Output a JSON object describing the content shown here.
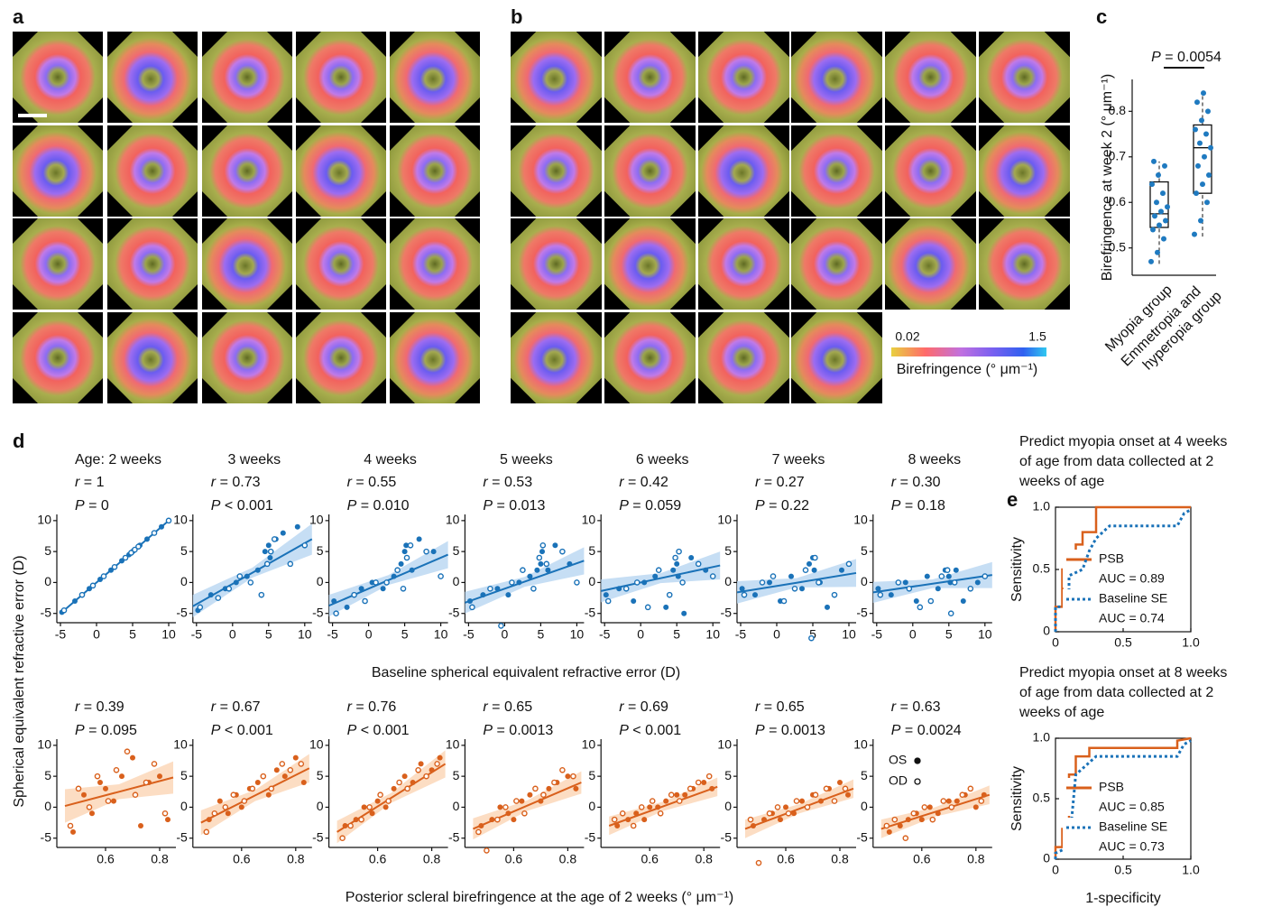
{
  "panel_labels": [
    "a",
    "b",
    "c",
    "d",
    "e"
  ],
  "colorbar": {
    "range": [
      0.02,
      1.5
    ],
    "ticks": [
      0.02,
      1.5
    ],
    "title": "Birefringence (° μm⁻¹)"
  },
  "chart_data": [
    {
      "type": "box",
      "annotation": "P = 0.0054",
      "ylabel": "Birefringence at week 2 (° μm⁻¹)",
      "categories": [
        "Myopia group",
        "Emmetropia and hyperopia group"
      ],
      "color": "#1f7ac0",
      "ylim": [
        0.44,
        0.87
      ],
      "yticks": [
        0.5,
        0.6,
        0.7,
        0.8
      ],
      "stats": [
        [
          0.465,
          0.545,
          0.575,
          0.645,
          0.69
        ],
        [
          0.525,
          0.62,
          0.72,
          0.77,
          0.845
        ]
      ],
      "points": [
        [
          0.47,
          0.49,
          0.52,
          0.54,
          0.55,
          0.56,
          0.57,
          0.58,
          0.59,
          0.6,
          0.62,
          0.64,
          0.66,
          0.68,
          0.69
        ],
        [
          0.53,
          0.56,
          0.6,
          0.62,
          0.64,
          0.66,
          0.68,
          0.7,
          0.72,
          0.73,
          0.75,
          0.76,
          0.78,
          0.8,
          0.82,
          0.84
        ]
      ]
    },
    {
      "type": "scatter-panels",
      "xlabel": "Baseline spherical equivalent refractive error (D)",
      "ylabel": "Spherical equivalent refractive error (D)",
      "color": "#1a72b8",
      "band_color": "#bcd8f2",
      "xlim": [
        -5.5,
        11
      ],
      "xticks": [
        -5,
        0,
        5,
        10
      ],
      "ylim": [
        -6.5,
        11
      ],
      "yticks": [
        -5,
        0,
        5,
        10
      ],
      "x_os": [
        -4.8,
        -3,
        -1,
        0.5,
        2,
        3.5,
        4.5,
        5,
        5.2,
        6,
        7,
        9
      ],
      "x_od": [
        -4.5,
        -2,
        -0.5,
        1,
        2.5,
        4,
        4.8,
        5.3,
        5.8,
        8,
        10
      ],
      "panels": [
        {
          "title": "Age: 2 weeks",
          "r": "r = 1",
          "p": "P = 0",
          "os": [
            -4.8,
            -3,
            -1,
            0.5,
            2,
            3.5,
            4.5,
            5,
            5.2,
            6,
            7,
            9
          ],
          "od": [
            -4.5,
            -2,
            -0.5,
            1,
            2.5,
            4,
            4.8,
            5.3,
            5.8,
            8,
            10
          ],
          "fit_x": [
            -5,
            2.5,
            10
          ],
          "fit_y": [
            -5,
            2.5,
            10
          ]
        },
        {
          "title": "3 weeks",
          "r": "r = 0.73",
          "p": "P < 0.001",
          "os": [
            -4.5,
            -2,
            -1,
            0,
            1,
            2,
            5,
            6,
            4,
            7,
            8,
            9
          ],
          "od": [
            -4,
            -2.5,
            -1,
            1,
            0,
            -2,
            3,
            5,
            7,
            3,
            6
          ],
          "fit_x": [
            -5.5,
            2.75,
            11
          ],
          "fit_y": [
            -3.83,
            1.58,
            7.0
          ],
          "band_low": [
            -5.6,
            0.8,
            4.5
          ],
          "band_high": [
            -2.0,
            2.4,
            9.5
          ]
        },
        {
          "title": "4 weeks",
          "r": "r = 0.55",
          "p": "P = 0.010",
          "os": [
            -3,
            -4,
            -1,
            0,
            -1,
            1,
            3,
            5,
            6,
            2,
            7,
            5
          ],
          "od": [
            -5,
            -2,
            -3,
            0,
            0,
            2,
            -1,
            4,
            6,
            5,
            1
          ],
          "fit_x": [
            -5.5,
            2.75,
            11
          ],
          "fit_y": [
            -3.75,
            0.38,
            4.5
          ],
          "band_low": [
            -5.5,
            -0.4,
            2.3
          ],
          "band_high": [
            -2,
            1.2,
            6.7
          ]
        },
        {
          "title": "5 weeks",
          "r": "r = 0.53",
          "p": "P = 0.013",
          "os": [
            -3,
            -2,
            -1,
            -2,
            0,
            1,
            2,
            3,
            5,
            2,
            6,
            3
          ],
          "od": [
            -4,
            -1,
            -7,
            0,
            2,
            -1,
            4,
            6,
            3,
            5,
            0
          ],
          "fit_x": [
            -5.5,
            2.75,
            11
          ],
          "fit_y": [
            -3.26,
            0.13,
            3.51
          ],
          "band_low": [
            -5,
            -0.7,
            1.3
          ],
          "band_high": [
            -1.5,
            0.9,
            5.7
          ]
        },
        {
          "title": "6 weeks",
          "r": "r = 0.42",
          "p": "P = 0.059",
          "os": [
            -2,
            -1,
            -3,
            0,
            1,
            -4,
            2,
            3,
            1,
            -5,
            4,
            2
          ],
          "od": [
            -3,
            -1,
            0,
            -4,
            2,
            -2,
            4,
            5,
            0,
            3,
            1
          ],
          "fit_x": [
            -5.5,
            2.75,
            11
          ],
          "fit_y": [
            -1.38,
            0.69,
            2.75
          ],
          "band_low": [
            -3.2,
            -0.1,
            0.5
          ],
          "band_high": [
            0.5,
            1.5,
            5
          ]
        },
        {
          "title": "7 weeks",
          "r": "r = 0.27",
          "p": "P = 0.22",
          "os": [
            -1,
            -2,
            0,
            -3,
            1,
            -1,
            3,
            4,
            2,
            0,
            -4,
            2
          ],
          "od": [
            -2,
            0,
            1,
            -3,
            -1,
            2,
            -9,
            4,
            0,
            -2,
            3
          ],
          "fit_x": [
            -5.5,
            2.75,
            11
          ],
          "fit_y": [
            -1.6,
            -0.04,
            1.53
          ],
          "band_low": [
            -3.4,
            -0.8,
            -0.7
          ],
          "band_high": [
            0.2,
            0.7,
            3.8
          ]
        },
        {
          "title": "8 weeks",
          "r": "r = 0.30",
          "p": "P = 0.18",
          "os": [
            -1,
            -2,
            0,
            -3,
            1,
            -1,
            2,
            1,
            0,
            2,
            -3,
            0
          ],
          "od": [
            -2,
            0,
            -1,
            -4,
            -3,
            1,
            2,
            -5,
            0,
            -1,
            1
          ],
          "fit_x": [
            -5.5,
            2.75,
            11
          ],
          "fit_y": [
            -1.6,
            -0.19,
            1.21
          ],
          "band_low": [
            -3.3,
            -0.9,
            -0.9
          ],
          "band_high": [
            0.1,
            0.5,
            3.3
          ]
        }
      ]
    },
    {
      "type": "scatter-panels",
      "xlabel": "Posterior scleral birefringence at the age of 2 weeks (° μm⁻¹)",
      "color": "#d9601c",
      "band_color": "#fbd7b8",
      "legend": [
        "OS",
        "OD"
      ],
      "xlim": [
        0.42,
        0.86
      ],
      "xticks": [
        0.6,
        0.8
      ],
      "ylim": [
        -6.5,
        11
      ],
      "yticks": [
        -5,
        0,
        5,
        10
      ],
      "x_os": [
        0.48,
        0.52,
        0.55,
        0.58,
        0.6,
        0.63,
        0.66,
        0.7,
        0.73,
        0.76,
        0.8,
        0.83
      ],
      "x_od": [
        0.47,
        0.5,
        0.54,
        0.57,
        0.61,
        0.64,
        0.68,
        0.71,
        0.75,
        0.78,
        0.82
      ],
      "panels": [
        {
          "r": "r = 0.39",
          "p": "P = 0.095",
          "os": [
            -4,
            2,
            -1,
            4,
            3,
            1,
            5,
            8,
            -3,
            4,
            5,
            -2
          ],
          "od": [
            -3,
            3,
            0,
            5,
            1,
            6,
            9,
            2,
            4,
            7,
            -1
          ],
          "fit_x": [
            0.45,
            0.65,
            0.85
          ],
          "fit_y": [
            0.2,
            2.5,
            4.8
          ],
          "band_low": [
            -2.5,
            1.3,
            2.2
          ],
          "band_high": [
            2.9,
            3.7,
            7.4
          ]
        },
        {
          "r": "r = 0.67",
          "p": "P < 0.001",
          "os": [
            -2,
            1,
            -1,
            2,
            0,
            3,
            4,
            2,
            6,
            5,
            8,
            4
          ],
          "od": [
            -4,
            -1,
            0,
            2,
            1,
            3,
            5,
            3,
            7,
            6,
            7
          ],
          "fit_x": [
            0.45,
            0.65,
            0.85
          ],
          "fit_y": [
            -2.5,
            1.9,
            6.3
          ],
          "band_low": [
            -4.5,
            1.0,
            4.0
          ],
          "band_high": [
            -0.5,
            2.8,
            8.6
          ]
        },
        {
          "r": "r = 0.76",
          "p": "P < 0.001",
          "os": [
            -3,
            -2,
            0,
            -1,
            1,
            0,
            3,
            5,
            4,
            7,
            6,
            8
          ],
          "od": [
            -5,
            -3,
            -2,
            0,
            2,
            1,
            4,
            3,
            6,
            5,
            7
          ],
          "fit_x": [
            0.45,
            0.65,
            0.85
          ],
          "fit_y": [
            -4,
            1.5,
            7
          ],
          "band_low": [
            -5.8,
            0.7,
            4.8
          ],
          "band_high": [
            -2.2,
            2.3,
            9.2
          ]
        },
        {
          "r": "r = 0.65",
          "p": "P = 0.0013",
          "os": [
            -3,
            -2,
            0,
            -1,
            -2,
            1,
            2,
            1,
            3,
            4,
            5,
            3
          ],
          "od": [
            -4,
            -7,
            -2,
            0,
            1,
            -1,
            3,
            2,
            4,
            6,
            5
          ],
          "fit_x": [
            0.45,
            0.65,
            0.85
          ],
          "fit_y": [
            -3.5,
            0.25,
            4
          ],
          "band_low": [
            -5.2,
            -0.6,
            2.2
          ],
          "band_high": [
            -1.8,
            1.1,
            5.8
          ]
        },
        {
          "r": "r = 0.69",
          "p": "P < 0.001",
          "os": [
            -3,
            -2,
            -1,
            -2,
            0,
            0,
            1,
            2,
            2,
            3,
            4,
            3
          ],
          "od": [
            -2,
            -1,
            -3,
            0,
            1,
            -1,
            2,
            1,
            3,
            4,
            5
          ],
          "fit_x": [
            0.45,
            0.65,
            0.85
          ],
          "fit_y": [
            -3,
            0.15,
            3.3
          ],
          "band_low": [
            -4.5,
            -0.6,
            1.8
          ],
          "band_high": [
            -1.5,
            0.9,
            4.8
          ]
        },
        {
          "r": "r = 0.65",
          "p": "P = 0.0013",
          "os": [
            -3,
            -2,
            -1,
            -2,
            0,
            -1,
            1,
            2,
            1,
            3,
            4,
            2
          ],
          "od": [
            -2,
            -9,
            -1,
            0,
            -1,
            1,
            0,
            2,
            3,
            1,
            3
          ],
          "fit_x": [
            0.45,
            0.65,
            0.85
          ],
          "fit_y": [
            -3.5,
            -0.25,
            3
          ],
          "band_low": [
            -5,
            -1,
            1.5
          ],
          "band_high": [
            -2,
            0.5,
            4.5
          ]
        },
        {
          "r": "r = 0.63",
          "p": "P = 0.0024",
          "os": [
            -4,
            -3,
            -2,
            -1,
            -2,
            0,
            -1,
            1,
            1,
            2,
            0,
            2
          ],
          "od": [
            -3,
            -2,
            -5,
            -1,
            0,
            -2,
            1,
            0,
            2,
            3,
            1
          ],
          "fit_x": [
            0.45,
            0.65,
            0.85
          ],
          "fit_y": [
            -3.5,
            -0.75,
            2
          ],
          "band_low": [
            -5,
            -1.5,
            0.5
          ],
          "band_high": [
            -2,
            0,
            3.5
          ]
        }
      ]
    },
    {
      "type": "roc",
      "title_lines": [
        "Predict myopia onset at 4 weeks",
        "of age from data collected at 2",
        "weeks of age"
      ],
      "ylabel": "Sensitivity",
      "xlim": [
        0,
        1
      ],
      "ylim": [
        0,
        1
      ],
      "xticks": [
        0,
        0.5,
        {
          "value": 1,
          "label": "1.0"
        }
      ],
      "yticks": [
        0,
        0.5,
        {
          "value": 1,
          "label": "1.0"
        }
      ],
      "series": [
        {
          "name": "PSB",
          "auc_label": "AUC = 0.89",
          "color": "#d9601c",
          "dashed": false,
          "x": [
            0,
            0,
            0.05,
            0.05,
            0.1,
            0.1,
            0.15,
            0.15,
            0.2,
            0.2,
            0.3,
            0.3,
            1
          ],
          "y": [
            0,
            0.2,
            0.2,
            0.5,
            0.5,
            0.6,
            0.6,
            0.7,
            0.7,
            0.8,
            0.8,
            1,
            1
          ]
        },
        {
          "name": "Baseline SE",
          "auc_label": "AUC = 0.74",
          "color": "#1a72b8",
          "dashed": true,
          "x": [
            0,
            0,
            0.1,
            0.1,
            0.2,
            0.25,
            0.3,
            0.35,
            0.4,
            0.9,
            0.95,
            1
          ],
          "y": [
            0,
            0.2,
            0.2,
            0.45,
            0.5,
            0.65,
            0.75,
            0.8,
            0.85,
            0.85,
            0.95,
            0.98
          ]
        }
      ]
    },
    {
      "type": "roc",
      "title_lines": [
        "Predict myopia onset at 8 weeks",
        "of age from data collected at 2",
        "weeks of age"
      ],
      "ylabel": "Sensitivity",
      "xlabel": "1-specificity",
      "xlim": [
        0,
        1
      ],
      "ylim": [
        0,
        1
      ],
      "xticks": [
        0,
        0.5,
        {
          "value": 1,
          "label": "1.0"
        }
      ],
      "yticks": [
        0,
        0.5,
        {
          "value": 1,
          "label": "1.0"
        }
      ],
      "series": [
        {
          "name": "PSB",
          "auc_label": "AUC = 0.85",
          "color": "#d9601c",
          "dashed": false,
          "x": [
            0,
            0,
            0.05,
            0.05,
            0.1,
            0.1,
            0.15,
            0.15,
            0.25,
            0.25,
            0.9,
            0.9,
            1
          ],
          "y": [
            0,
            0.1,
            0.1,
            0.25,
            0.25,
            0.7,
            0.7,
            0.85,
            0.85,
            0.92,
            0.92,
            0.98,
            1
          ]
        },
        {
          "name": "Baseline SE",
          "auc_label": "AUC = 0.73",
          "color": "#1a72b8",
          "dashed": true,
          "x": [
            0,
            0,
            0.1,
            0.15,
            0.2,
            0.3,
            0.5,
            0.9,
            0.95,
            1
          ],
          "y": [
            0,
            0.05,
            0.1,
            0.7,
            0.75,
            0.85,
            0.85,
            0.85,
            0.95,
            0.98
          ]
        }
      ]
    }
  ]
}
